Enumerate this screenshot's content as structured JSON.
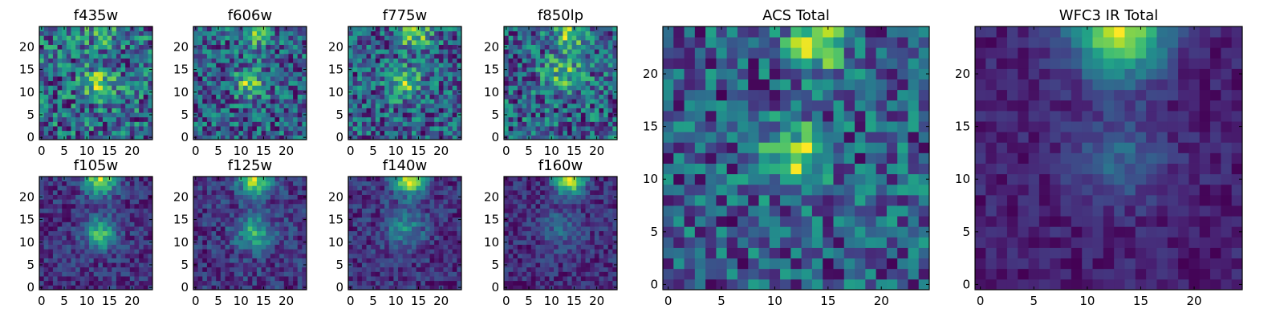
{
  "figure": {
    "title": ""
  },
  "chart_data": [
    {
      "type": "heatmap",
      "title": "f435w",
      "x_ticks": [
        "0",
        "5",
        "10",
        "15",
        "20"
      ],
      "y_ticks": [
        "0",
        "5",
        "10",
        "15",
        "20"
      ],
      "xlim": [
        -0.5,
        24.5
      ],
      "ylim": [
        -0.5,
        24.5
      ],
      "size": [
        25,
        25
      ],
      "colormap": "viridis",
      "blob": {
        "x": 13,
        "y": 12,
        "strength": 0.35,
        "width": 2.5
      },
      "top_blob": {
        "x": 13,
        "y": 23,
        "strength": 0.15,
        "width": 3
      },
      "noise": 0.55,
      "base": 0.6,
      "seed": 11
    },
    {
      "type": "heatmap",
      "title": "f606w",
      "x_ticks": [
        "0",
        "5",
        "10",
        "15",
        "20"
      ],
      "y_ticks": [
        "0",
        "5",
        "10",
        "15",
        "20"
      ],
      "xlim": [
        -0.5,
        24.5
      ],
      "ylim": [
        -0.5,
        24.5
      ],
      "size": [
        25,
        25
      ],
      "colormap": "viridis",
      "blob": {
        "x": 12,
        "y": 12,
        "strength": 0.4,
        "width": 2.2
      },
      "top_blob": {
        "x": 13,
        "y": 23,
        "strength": 0.3,
        "width": 2.5
      },
      "noise": 0.5,
      "base": 0.5,
      "seed": 23
    },
    {
      "type": "heatmap",
      "title": "f775w",
      "x_ticks": [
        "0",
        "5",
        "10",
        "15",
        "20"
      ],
      "y_ticks": [
        "0",
        "5",
        "10",
        "15",
        "20"
      ],
      "xlim": [
        -0.5,
        24.5
      ],
      "ylim": [
        -0.5,
        24.5
      ],
      "size": [
        25,
        25
      ],
      "colormap": "viridis",
      "blob": {
        "x": 12,
        "y": 12,
        "strength": 0.35,
        "width": 2.5
      },
      "top_blob": {
        "x": 14,
        "y": 23,
        "strength": 0.4,
        "width": 2.5
      },
      "noise": 0.5,
      "base": 0.55,
      "seed": 37
    },
    {
      "type": "heatmap",
      "title": "f850lp",
      "x_ticks": [
        "0",
        "5",
        "10",
        "15",
        "20"
      ],
      "y_ticks": [
        "0",
        "5",
        "10",
        "15",
        "20"
      ],
      "xlim": [
        -0.5,
        24.5
      ],
      "ylim": [
        -0.5,
        24.5
      ],
      "size": [
        25,
        25
      ],
      "colormap": "viridis",
      "blob": {
        "x": 13,
        "y": 14,
        "strength": 0.3,
        "width": 3
      },
      "top_blob": {
        "x": 14,
        "y": 23,
        "strength": 0.35,
        "width": 2.5
      },
      "noise": 0.5,
      "base": 0.55,
      "seed": 51
    },
    {
      "type": "heatmap",
      "title": "f105w",
      "x_ticks": [
        "0",
        "5",
        "10",
        "15",
        "20"
      ],
      "y_ticks": [
        "0",
        "5",
        "10",
        "15",
        "20"
      ],
      "xlim": [
        -0.5,
        24.5
      ],
      "ylim": [
        -0.5,
        24.5
      ],
      "size": [
        25,
        25
      ],
      "colormap": "viridis",
      "blob": {
        "x": 13,
        "y": 12,
        "strength": 0.45,
        "width": 2.5
      },
      "top_blob": {
        "x": 13,
        "y": 24,
        "strength": 0.6,
        "width": 2.5
      },
      "noise": 0.25,
      "base": 0.35,
      "seed": 67
    },
    {
      "type": "heatmap",
      "title": "f125w",
      "x_ticks": [
        "0",
        "5",
        "10",
        "15",
        "20"
      ],
      "y_ticks": [
        "0",
        "5",
        "10",
        "15",
        "20"
      ],
      "xlim": [
        -0.5,
        24.5
      ],
      "ylim": [
        -0.5,
        24.5
      ],
      "size": [
        25,
        25
      ],
      "colormap": "viridis",
      "blob": {
        "x": 13,
        "y": 12,
        "strength": 0.35,
        "width": 2.8
      },
      "top_blob": {
        "x": 13,
        "y": 24,
        "strength": 0.55,
        "width": 2.5
      },
      "noise": 0.25,
      "base": 0.4,
      "seed": 79
    },
    {
      "type": "heatmap",
      "title": "f140w",
      "x_ticks": [
        "0",
        "5",
        "10",
        "15",
        "20"
      ],
      "y_ticks": [
        "0",
        "5",
        "10",
        "15",
        "20"
      ],
      "xlim": [
        -0.5,
        24.5
      ],
      "ylim": [
        -0.5,
        24.5
      ],
      "size": [
        25,
        25
      ],
      "colormap": "viridis",
      "blob": {
        "x": 12,
        "y": 13,
        "strength": 0.25,
        "width": 3
      },
      "top_blob": {
        "x": 13,
        "y": 24,
        "strength": 0.6,
        "width": 2.5
      },
      "noise": 0.22,
      "base": 0.3,
      "seed": 83
    },
    {
      "type": "heatmap",
      "title": "f160w",
      "x_ticks": [
        "0",
        "5",
        "10",
        "15",
        "20"
      ],
      "y_ticks": [
        "0",
        "5",
        "10",
        "15",
        "20"
      ],
      "xlim": [
        -0.5,
        24.5
      ],
      "ylim": [
        -0.5,
        24.5
      ],
      "size": [
        25,
        25
      ],
      "colormap": "viridis",
      "blob": {
        "x": 12,
        "y": 13,
        "strength": 0.15,
        "width": 3
      },
      "top_blob": {
        "x": 14,
        "y": 24,
        "strength": 0.65,
        "width": 2.3
      },
      "noise": 0.2,
      "base": 0.2,
      "seed": 97
    },
    {
      "type": "heatmap",
      "title": "ACS Total",
      "x_ticks": [
        "0",
        "5",
        "10",
        "15",
        "20"
      ],
      "y_ticks": [
        "0",
        "5",
        "10",
        "15",
        "20"
      ],
      "xlim": [
        -0.5,
        24.5
      ],
      "ylim": [
        -0.5,
        24.5
      ],
      "size": [
        25,
        25
      ],
      "colormap": "viridis",
      "blob": {
        "x": 12,
        "y": 12,
        "strength": 0.35,
        "width": 2.2
      },
      "top_blob": {
        "x": 14,
        "y": 23,
        "strength": 0.4,
        "width": 1.8
      },
      "noise": 0.35,
      "base": 0.55,
      "seed": 109
    },
    {
      "type": "heatmap",
      "title": "WFC3 IR Total",
      "x_ticks": [
        "0",
        "5",
        "10",
        "15",
        "20"
      ],
      "y_ticks": [
        "0",
        "5",
        "10",
        "15",
        "20"
      ],
      "xlim": [
        -0.5,
        24.5
      ],
      "ylim": [
        -0.5,
        24.5
      ],
      "size": [
        25,
        25
      ],
      "colormap": "viridis",
      "blob": {
        "x": 13,
        "y": 12,
        "strength": 0.2,
        "width": 3
      },
      "top_blob": {
        "x": 13,
        "y": 24,
        "strength": 0.7,
        "width": 3
      },
      "noise": 0.15,
      "base": 0.3,
      "seed": 131
    }
  ]
}
